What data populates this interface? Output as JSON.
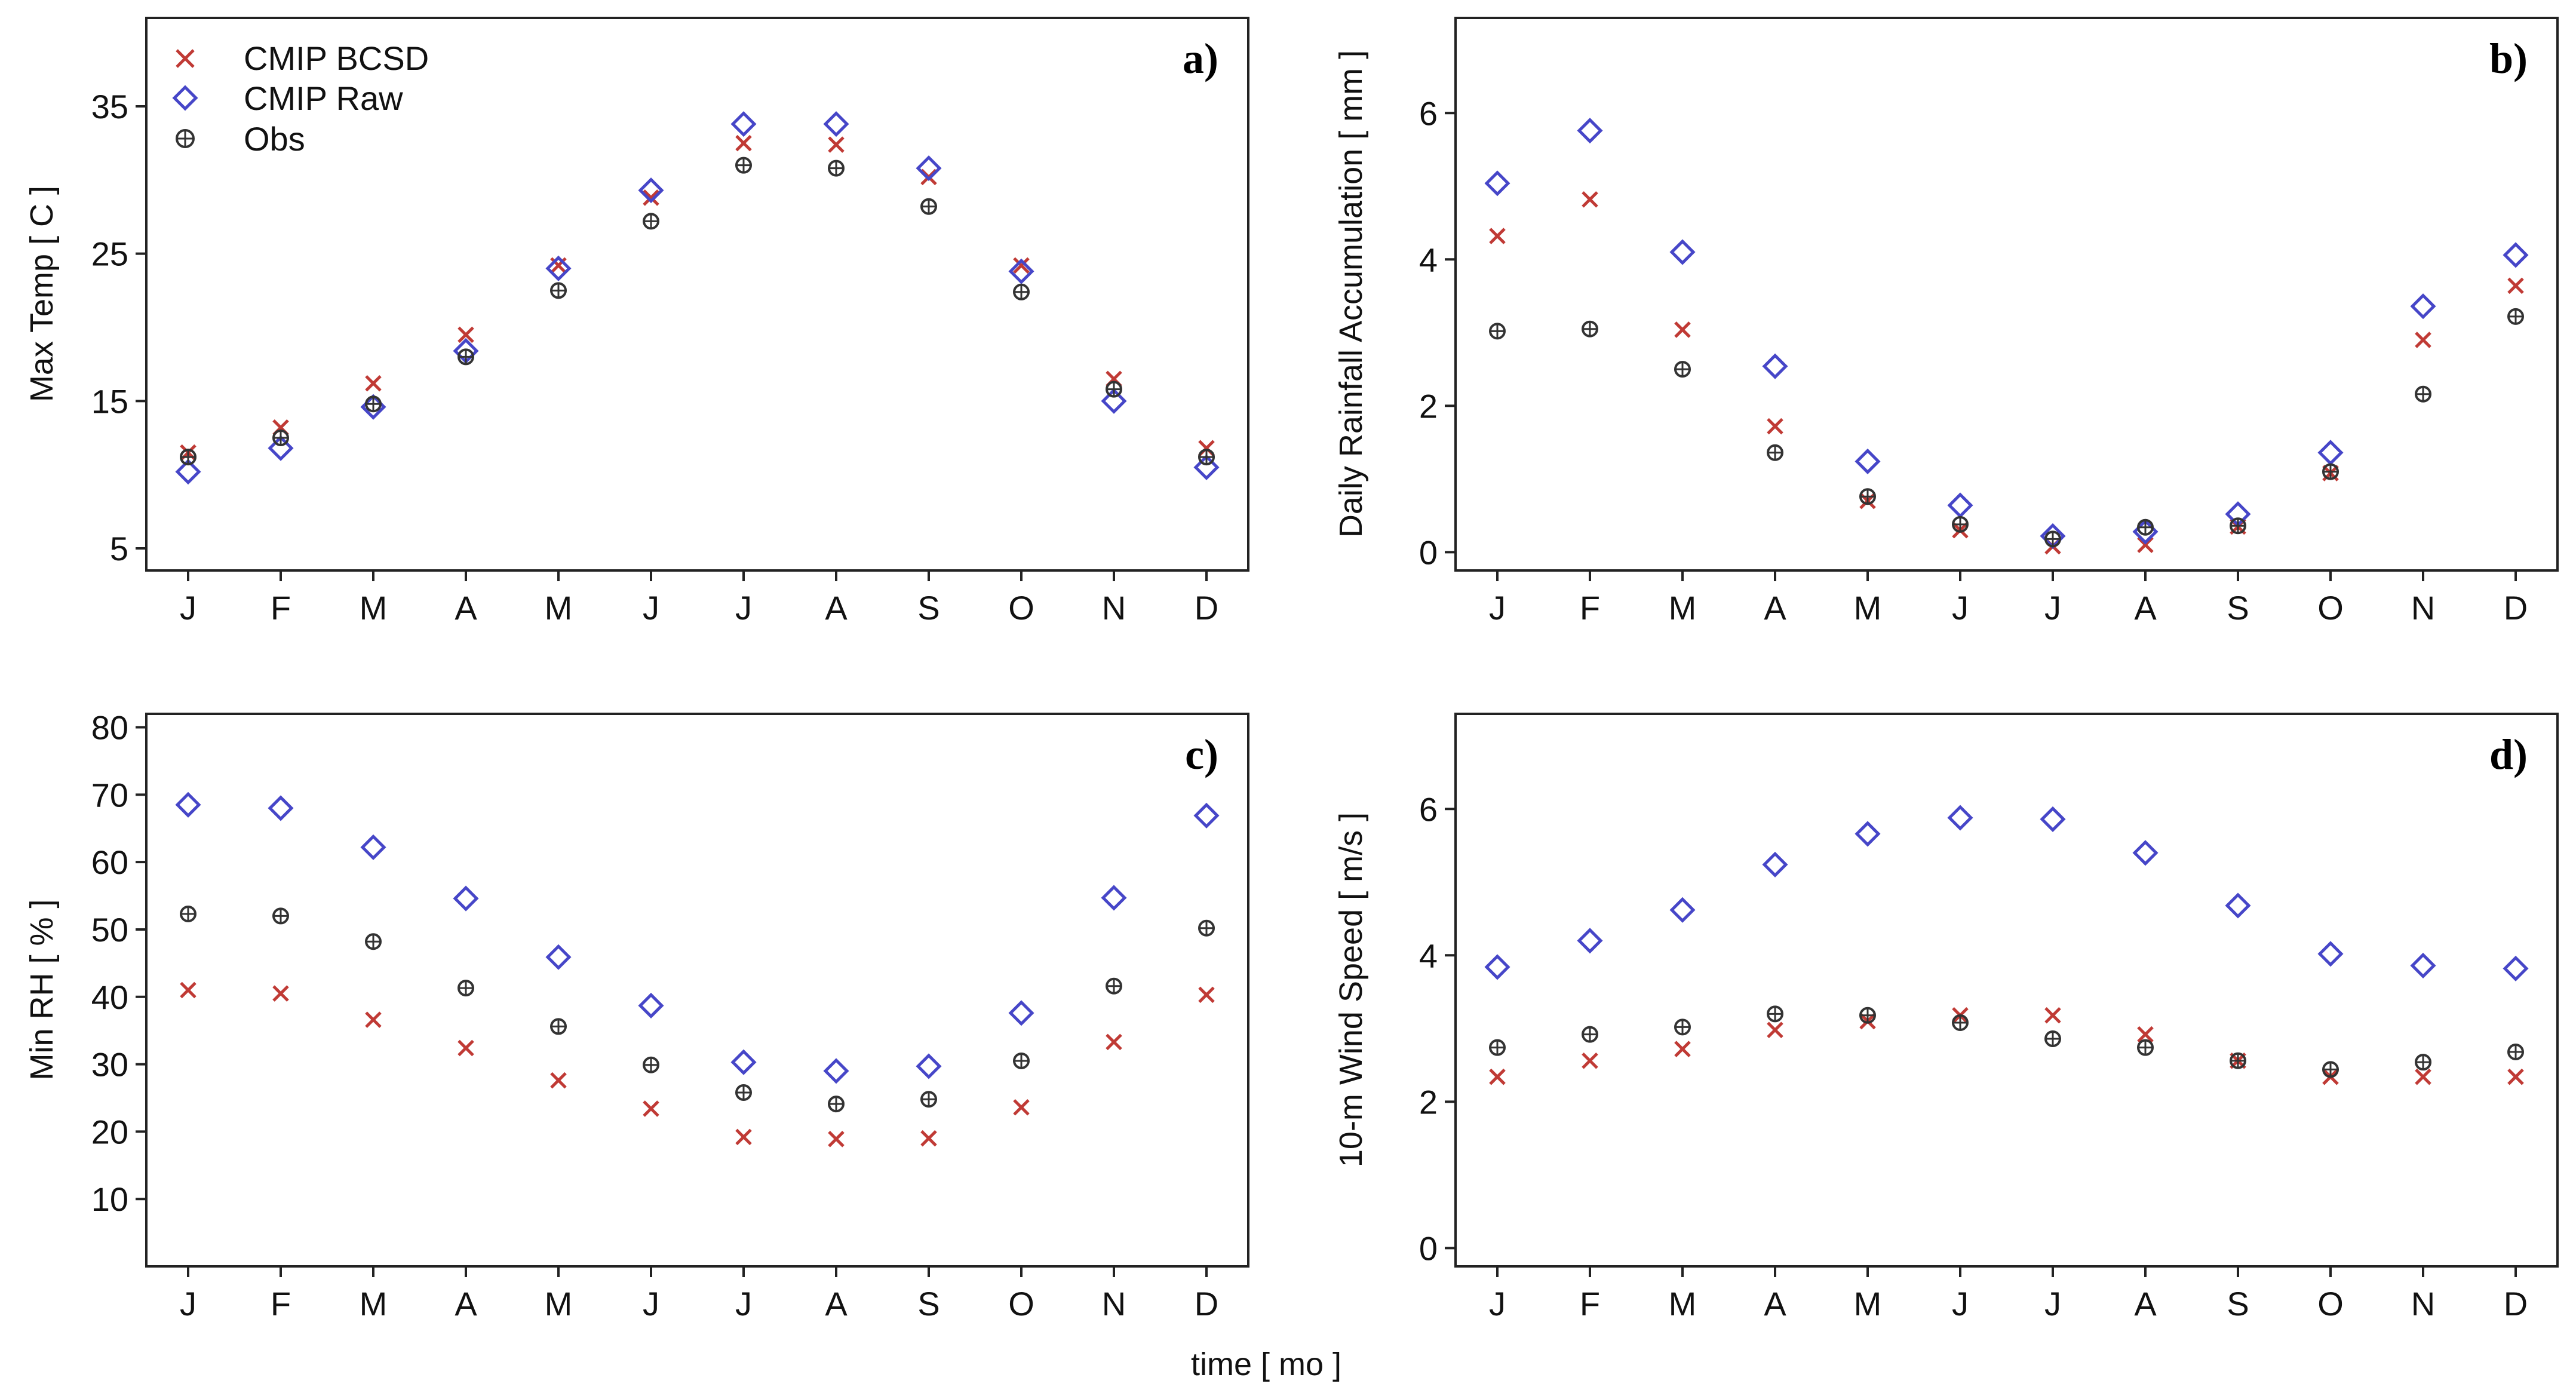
{
  "figure": {
    "xlabel": "time [ mo ]",
    "colors": {
      "bcsd": "#c03a35",
      "raw": "#4646c8",
      "obs": "#333333"
    }
  },
  "legend": {
    "entries": [
      {
        "key": "bcsd",
        "label": "CMIP BCSD",
        "marker": "x-icon"
      },
      {
        "key": "raw",
        "label": "CMIP Raw",
        "marker": "diamond-icon"
      },
      {
        "key": "obs",
        "label": "Obs",
        "marker": "circle-plus-icon"
      }
    ]
  },
  "chart_data": [
    {
      "type": "scatter",
      "panel": "a)",
      "ylabel": "Max Temp [ C ]",
      "categories": [
        "J",
        "F",
        "M",
        "A",
        "M",
        "J",
        "J",
        "A",
        "S",
        "O",
        "N",
        "D"
      ],
      "ylim": [
        3.5,
        41
      ],
      "yticks": [
        5,
        15,
        25,
        35
      ],
      "legend": "top-left",
      "series": [
        {
          "name": "CMIP BCSD",
          "key": "bcsd",
          "values": [
            11.5,
            13.2,
            16.2,
            19.5,
            24.2,
            28.8,
            32.5,
            32.4,
            30.2,
            24.2,
            16.5,
            11.8
          ]
        },
        {
          "name": "CMIP Raw",
          "key": "raw",
          "values": [
            10.2,
            11.8,
            14.6,
            18.4,
            24.0,
            29.3,
            33.8,
            33.8,
            30.8,
            23.8,
            15.0,
            10.5
          ]
        },
        {
          "name": "Obs",
          "key": "obs",
          "values": [
            11.2,
            12.5,
            14.8,
            18.0,
            22.5,
            27.2,
            31.0,
            30.8,
            28.2,
            22.4,
            15.8,
            11.2
          ]
        }
      ]
    },
    {
      "type": "scatter",
      "panel": "b)",
      "ylabel": "Daily Rainfall Accumulation [ mm ]",
      "categories": [
        "J",
        "F",
        "M",
        "A",
        "M",
        "J",
        "J",
        "A",
        "S",
        "O",
        "N",
        "D"
      ],
      "ylim": [
        -0.25,
        7.3
      ],
      "yticks": [
        0,
        2,
        4,
        6
      ],
      "legend": "none",
      "series": [
        {
          "name": "CMIP BCSD",
          "key": "bcsd",
          "values": [
            4.32,
            4.82,
            3.04,
            1.72,
            0.7,
            0.3,
            0.08,
            0.1,
            0.35,
            1.08,
            2.9,
            3.64
          ]
        },
        {
          "name": "CMIP Raw",
          "key": "raw",
          "values": [
            5.04,
            5.76,
            4.1,
            2.54,
            1.24,
            0.64,
            0.22,
            0.28,
            0.52,
            1.36,
            3.36,
            4.06
          ]
        },
        {
          "name": "Obs",
          "key": "obs",
          "values": [
            3.02,
            3.05,
            2.5,
            1.36,
            0.76,
            0.38,
            0.18,
            0.34,
            0.36,
            1.1,
            2.16,
            3.22
          ]
        }
      ]
    },
    {
      "type": "scatter",
      "panel": "c)",
      "ylabel": "Min RH [ % ]",
      "categories": [
        "J",
        "F",
        "M",
        "A",
        "M",
        "J",
        "J",
        "A",
        "S",
        "O",
        "N",
        "D"
      ],
      "ylim": [
        0,
        82
      ],
      "yticks": [
        10,
        20,
        30,
        40,
        50,
        60,
        70,
        80
      ],
      "legend": "none",
      "series": [
        {
          "name": "CMIP BCSD",
          "key": "bcsd",
          "values": [
            41.0,
            40.5,
            36.6,
            32.4,
            27.6,
            23.4,
            19.2,
            18.9,
            19.0,
            23.6,
            33.3,
            40.3
          ]
        },
        {
          "name": "CMIP Raw",
          "key": "raw",
          "values": [
            68.5,
            68.0,
            62.2,
            54.6,
            45.9,
            38.7,
            30.3,
            29.0,
            29.7,
            37.6,
            54.7,
            66.9
          ]
        },
        {
          "name": "Obs",
          "key": "obs",
          "values": [
            52.3,
            52.0,
            48.2,
            41.3,
            35.6,
            29.9,
            25.8,
            24.1,
            24.8,
            30.5,
            41.6,
            50.2
          ]
        }
      ]
    },
    {
      "type": "scatter",
      "panel": "d)",
      "ylabel": "10-m Wind Speed [ m/s ]",
      "categories": [
        "J",
        "F",
        "M",
        "A",
        "M",
        "J",
        "J",
        "A",
        "S",
        "O",
        "N",
        "D"
      ],
      "ylim": [
        -0.25,
        7.3
      ],
      "yticks": [
        0,
        2,
        4,
        6
      ],
      "legend": "none",
      "series": [
        {
          "name": "CMIP BCSD",
          "key": "bcsd",
          "values": [
            2.34,
            2.56,
            2.72,
            2.98,
            3.1,
            3.18,
            3.18,
            2.92,
            2.56,
            2.34,
            2.34,
            2.34
          ]
        },
        {
          "name": "CMIP Raw",
          "key": "raw",
          "values": [
            3.84,
            4.2,
            4.62,
            5.24,
            5.66,
            5.88,
            5.86,
            5.4,
            4.68,
            4.02,
            3.86,
            3.82
          ]
        },
        {
          "name": "Obs",
          "key": "obs",
          "values": [
            2.74,
            2.92,
            3.02,
            3.2,
            3.18,
            3.08,
            2.86,
            2.74,
            2.56,
            2.44,
            2.54,
            2.68
          ]
        }
      ]
    }
  ]
}
